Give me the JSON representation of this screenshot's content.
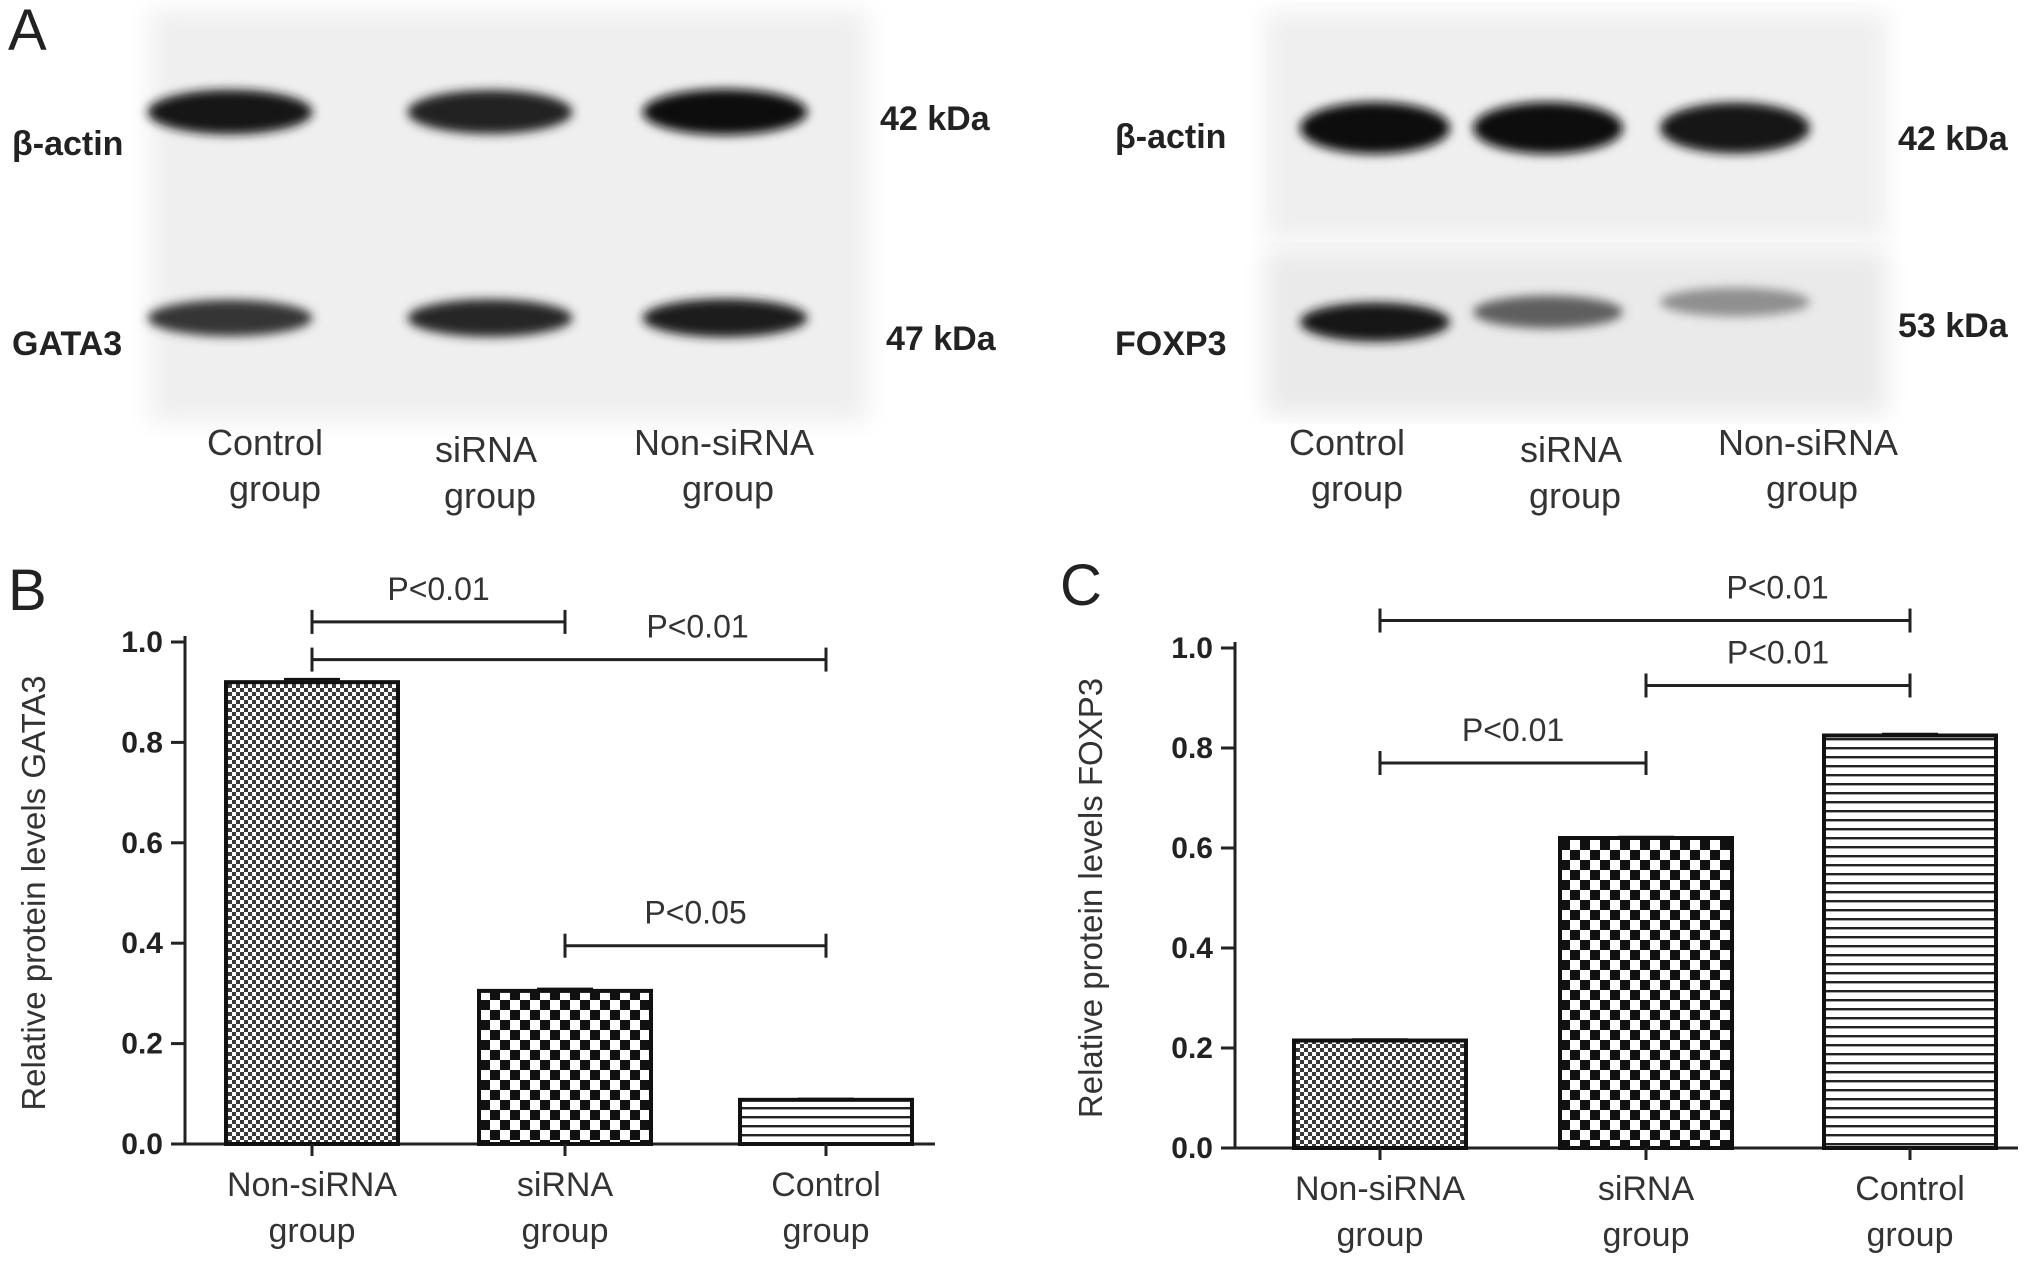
{
  "panel_letters": [
    "A",
    "B",
    "C"
  ],
  "blots": [
    {
      "rows": [
        {
          "protein": "β-actin",
          "size": "42 kDa",
          "intensity": [
            0.92,
            0.88,
            1.0
          ]
        },
        {
          "protein": "GATA3",
          "size": "47 kDa",
          "intensity": [
            0.78,
            0.85,
            0.9
          ]
        }
      ],
      "lanes": [
        [
          "Control",
          "group"
        ],
        [
          "siRNA",
          "group"
        ],
        [
          "Non-siRNA",
          "group"
        ]
      ]
    },
    {
      "rows": [
        {
          "protein": "β-actin",
          "size": "42 kDa",
          "intensity": [
            1.0,
            1.0,
            0.95
          ]
        },
        {
          "protein": "FOXP3",
          "size": "53 kDa",
          "intensity": [
            0.95,
            0.55,
            0.3
          ]
        }
      ],
      "lanes": [
        [
          "Control",
          "group"
        ],
        [
          "siRNA",
          "group"
        ],
        [
          "Non-siRNA",
          "group"
        ]
      ]
    }
  ],
  "chart_data": [
    {
      "type": "bar",
      "panel": "B",
      "categories": [
        [
          "Non-siRNA",
          "group"
        ],
        [
          "siRNA",
          "group"
        ],
        [
          "Control",
          "group"
        ]
      ],
      "values": [
        0.92,
        0.305,
        0.088
      ],
      "errors": [
        0.006,
        0.004,
        0.002
      ],
      "patterns": [
        "fine-check",
        "coarse-check",
        "h-stripes"
      ],
      "ylabel": "Relative protein levels  GATA3",
      "ylim": [
        0,
        1.0
      ],
      "yticks": [
        "0.0",
        "0.2",
        "0.4",
        "0.6",
        "0.8",
        "1.0"
      ],
      "significance": [
        {
          "from": 0,
          "to": 1,
          "label": "P<0.01",
          "y": 1.04
        },
        {
          "from": 0,
          "to": 2,
          "label": "P<0.01",
          "y": 0.965
        },
        {
          "from": 1,
          "to": 2,
          "label": "P<0.05",
          "y": 0.395
        }
      ]
    },
    {
      "type": "bar",
      "panel": "C",
      "categories": [
        [
          "Non-siRNA",
          "group"
        ],
        [
          "siRNA",
          "group"
        ],
        [
          "Control",
          "group"
        ]
      ],
      "values": [
        0.215,
        0.62,
        0.825
      ],
      "errors": [
        0.002,
        0.002,
        0.003
      ],
      "patterns": [
        "fine-check",
        "coarse-check",
        "h-stripes"
      ],
      "ylabel": "Relative protein levels  FOXP3",
      "ylim": [
        0,
        1.0
      ],
      "yticks": [
        "0.0",
        "0.2",
        "0.4",
        "0.6",
        "0.8",
        "1.0"
      ],
      "significance": [
        {
          "from": 0,
          "to": 2,
          "label": "P<0.01",
          "y": 1.055
        },
        {
          "from": 1,
          "to": 2,
          "label": "P<0.01",
          "y": 0.925
        },
        {
          "from": 0,
          "to": 1,
          "label": "P<0.01",
          "y": 0.77
        }
      ]
    }
  ]
}
